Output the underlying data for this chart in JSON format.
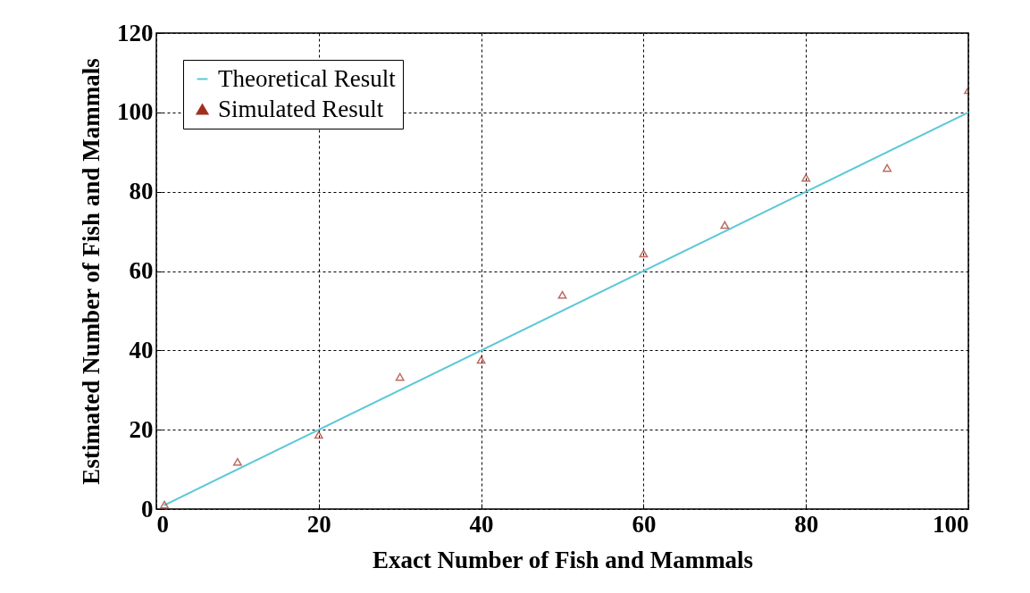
{
  "chart_data": {
    "type": "line",
    "xlabel": "Exact Number of Fish and Mammals",
    "ylabel": "Estimated Number of Fish and Mammals",
    "xlim": [
      0,
      100
    ],
    "xticks": [
      0,
      20,
      40,
      60,
      80,
      100
    ],
    "ylim": [
      0,
      120
    ],
    "yticks": [
      0,
      20,
      40,
      60,
      80,
      100,
      120
    ],
    "grid": true,
    "legend": "top left",
    "series": [
      {
        "name": "Theoretical Result",
        "marker": "none",
        "color": "#5bc8d8",
        "x": [
          1,
          100
        ],
        "values": [
          1,
          100
        ]
      },
      {
        "name": "Simulated Result",
        "type": "scatter",
        "marker": "triangle",
        "color": "#a0301e",
        "x": [
          1,
          10,
          20,
          30,
          40,
          50,
          60,
          70,
          80,
          90,
          100
        ],
        "values": [
          1.1,
          11.9,
          18.7,
          33.3,
          37.6,
          54,
          64.4,
          71.6,
          83.5,
          86,
          105.6
        ]
      }
    ]
  }
}
